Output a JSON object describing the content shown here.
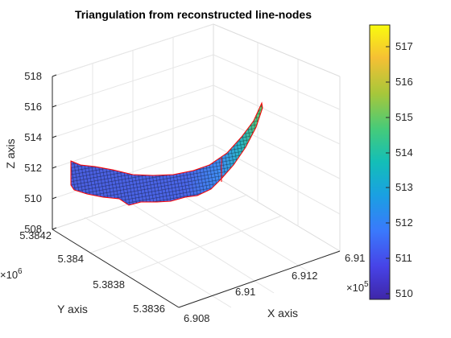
{
  "chart_data": {
    "type": "surface3d",
    "title": "Triangulation from reconstructed line-nodes",
    "xlabel": "X axis",
    "ylabel": "Y axis",
    "zlabel": "Z axis",
    "x_scale_label": "×10",
    "x_scale_exp": "5",
    "y_scale_label": "×10",
    "y_scale_exp": "6",
    "x_ticks": [
      "6.908",
      "6.91",
      "6.912",
      "6.91"
    ],
    "y_ticks": [
      "5.3836",
      "5.3838",
      "5.384",
      "5.3842"
    ],
    "z_ticks": [
      "508",
      "510",
      "512",
      "514",
      "516",
      "518"
    ],
    "zlim": [
      508,
      518
    ],
    "colorbar": {
      "ticks": [
        "510",
        "511",
        "512",
        "513",
        "514",
        "515",
        "516",
        "517"
      ],
      "range": [
        509.8,
        517.6
      ],
      "colormap": "parula"
    },
    "grid": true,
    "edge_color": "#ff0000"
  }
}
